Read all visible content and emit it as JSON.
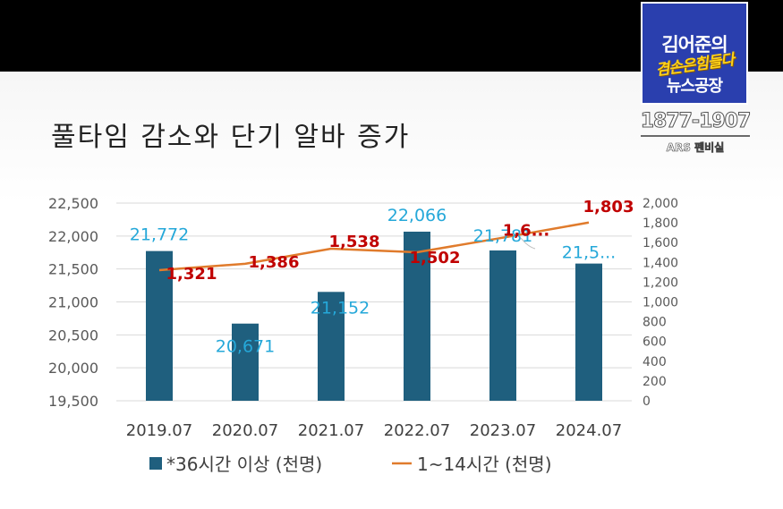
{
  "branding": {
    "logo_line1": "김어준의",
    "logo_line2": "겸손은힘들다",
    "logo_line3": "뉴스공장",
    "phone": "1877-1907",
    "ars": "ARS 펜비실"
  },
  "colors": {
    "bar": "#1f5f7e",
    "line": "#e07b2c",
    "bar_label": "#25a8d9",
    "line_label": "#c00000",
    "grid": "#d9d9d9",
    "axis_text": "#595959"
  },
  "chart_data": {
    "type": "bar",
    "title": "풀타임 감소와 단기 알바 증가",
    "categories": [
      "2019.07",
      "2020.07",
      "2021.07",
      "2022.07",
      "2023.07",
      "2024.07"
    ],
    "series": [
      {
        "name": "*36시간 이상 (천명)",
        "type": "bar",
        "axis": "left",
        "values": [
          21772,
          20671,
          21152,
          22066,
          21781,
          21582
        ],
        "labels": [
          "21,772",
          "20,671",
          "21,152",
          "22,066",
          "21,781",
          "21,5..."
        ]
      },
      {
        "name": "1~14시간 (천명)",
        "type": "line",
        "axis": "right",
        "values": [
          1321,
          1386,
          1538,
          1502,
          1650,
          1803
        ],
        "labels": [
          "1,321",
          "1,386",
          "1,538",
          "1,502",
          "1,6...",
          "1,803"
        ]
      }
    ],
    "ylim_left": [
      19500,
      22500
    ],
    "yticks_left": [
      "22,500",
      "22,000",
      "21,500",
      "21,000",
      "20,500",
      "20,000",
      "19,500"
    ],
    "ylim_right": [
      0,
      2000
    ],
    "yticks_right": [
      "2,000",
      "1,800",
      "1,600",
      "1,400",
      "1,200",
      "1,000",
      "800",
      "600",
      "400",
      "200",
      "0"
    ],
    "grid": true,
    "legend": "bottom"
  }
}
